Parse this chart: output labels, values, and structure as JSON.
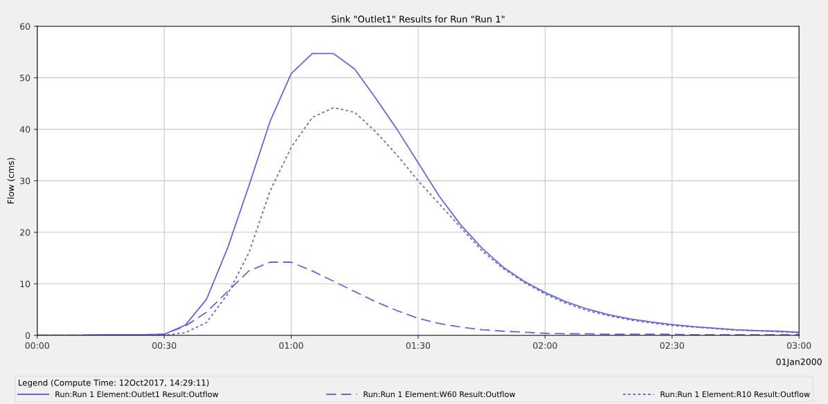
{
  "chart_data": {
    "type": "line",
    "title": "Sink \"Outlet1\" Results for Run \"Run 1\"",
    "ylabel": "Flow (cms)",
    "x": [
      "2000-01-01T00:00",
      "2000-01-01T00:05",
      "2000-01-01T00:10",
      "2000-01-01T00:15",
      "2000-01-01T00:20",
      "2000-01-01T00:25",
      "2000-01-01T00:30",
      "2000-01-01T00:35",
      "2000-01-01T00:40",
      "2000-01-01T00:45",
      "2000-01-01T00:50",
      "2000-01-01T00:55",
      "2000-01-01T01:00",
      "2000-01-01T01:05",
      "2000-01-01T01:10",
      "2000-01-01T01:15",
      "2000-01-01T01:20",
      "2000-01-01T01:25",
      "2000-01-01T01:30",
      "2000-01-01T01:35",
      "2000-01-01T01:40",
      "2000-01-01T01:45",
      "2000-01-01T01:50",
      "2000-01-01T01:55",
      "2000-01-01T02:00",
      "2000-01-01T02:05",
      "2000-01-01T02:10",
      "2000-01-01T02:15",
      "2000-01-01T02:20",
      "2000-01-01T02:25",
      "2000-01-01T02:30",
      "2000-01-01T02:35",
      "2000-01-01T02:40",
      "2000-01-01T02:45",
      "2000-01-01T02:50",
      "2000-01-01T02:55",
      "2000-01-01T03:00"
    ],
    "series": [
      {
        "name": "Run:Run 1 Element:Outlet1 Result:Outflow",
        "color": "#6666d9",
        "line_style": "solid",
        "values": [
          0,
          0,
          0,
          0.1,
          0.1,
          0.1,
          0.2,
          2,
          7,
          17,
          29,
          41.5,
          50.8,
          54.7,
          54.7,
          51.7,
          46,
          40,
          33.5,
          27,
          21.5,
          17,
          13.3,
          10.5,
          8.3,
          6.5,
          5.1,
          4.0,
          3.2,
          2.6,
          2.1,
          1.7,
          1.4,
          1.1,
          0.9,
          0.8,
          0.6
        ]
      },
      {
        "name": "Run:Run 1 Element:W60 Result:Outflow",
        "color": "#6666d9",
        "line_style": "dashed",
        "values": [
          0,
          0,
          0,
          0.1,
          0.1,
          0.1,
          0.2,
          1.8,
          4.5,
          8.5,
          12.5,
          14.2,
          14.2,
          12.5,
          10.5,
          8.5,
          6.5,
          4.8,
          3.3,
          2.3,
          1.6,
          1.1,
          0.8,
          0.6,
          0.4,
          0.3,
          0.3,
          0.2,
          0.2,
          0.2,
          0.2,
          0.1,
          0.1,
          0.1,
          0.1,
          0.1,
          0.1
        ]
      },
      {
        "name": "Run:Run 1 Element:R10 Result:Outflow",
        "color": "#6666d9",
        "line_style": "dotted",
        "values": [
          0,
          0,
          0,
          0,
          0,
          0,
          0,
          0.5,
          2.5,
          8,
          16,
          28,
          36.5,
          42.3,
          44.2,
          43.3,
          39.5,
          35,
          30,
          25.5,
          21,
          16.5,
          13,
          10.3,
          8.0,
          6.2,
          4.8,
          3.8,
          3.0,
          2.4,
          1.9,
          1.6,
          1.3,
          1.0,
          0.9,
          0.7,
          0.5
        ]
      }
    ],
    "xlim": [
      "2000-01-01T00:00",
      "2000-01-01T03:00"
    ],
    "xticks": [
      {
        "value": "2000-01-01T00:00",
        "label": "00:00"
      },
      {
        "value": "2000-01-01T00:30",
        "label": "00:30"
      },
      {
        "value": "2000-01-01T01:00",
        "label": "01:00"
      },
      {
        "value": "2000-01-01T01:30",
        "label": "01:30"
      },
      {
        "value": "2000-01-01T02:00",
        "label": "02:00"
      },
      {
        "value": "2000-01-01T02:30",
        "label": "02:30"
      },
      {
        "value": "2000-01-01T03:00",
        "label": "03:00"
      }
    ],
    "ylim": [
      0,
      60
    ],
    "yticks": [
      0,
      10,
      20,
      30,
      40,
      50,
      60
    ],
    "grid": true,
    "legend": "bottom",
    "legend_title": "Legend (Compute Time: 12Oct2017, 14:29:11)",
    "annotations": [
      "01Jan2000"
    ]
  }
}
